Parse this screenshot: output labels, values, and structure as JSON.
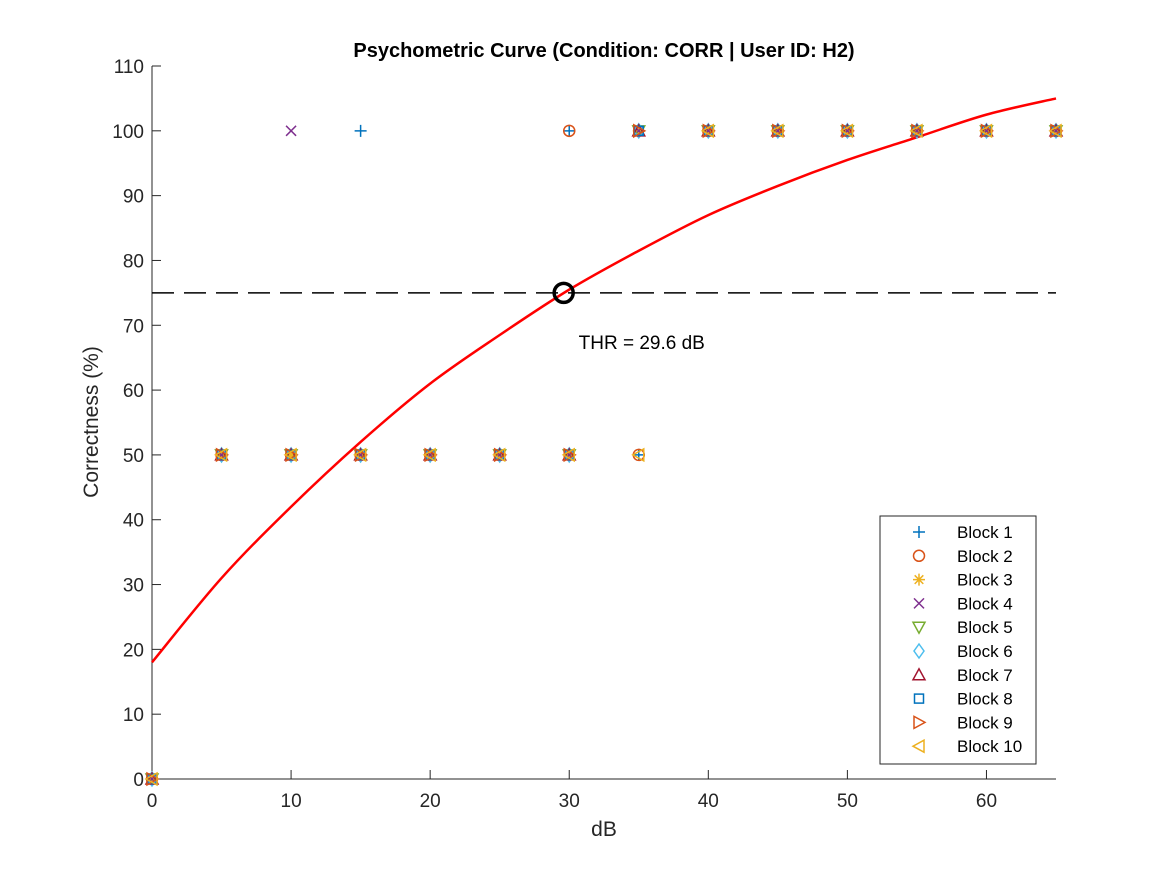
{
  "chart_data": {
    "type": "scatter",
    "title": "Psychometric Curve (Condition: CORR | User ID: H2)",
    "xlabel": "dB",
    "ylabel": "Correctness (%)",
    "xlim": [
      0,
      65
    ],
    "ylim": [
      0,
      110
    ],
    "xticks": [
      "0",
      "10",
      "20",
      "30",
      "40",
      "50",
      "60"
    ],
    "yticks": [
      "0",
      "10",
      "20",
      "30",
      "40",
      "50",
      "60",
      "70",
      "80",
      "90",
      "100",
      "110"
    ],
    "grid": false,
    "legend_location": "bottom-right",
    "series": [
      {
        "name": "Block 1",
        "marker": "plus",
        "color": "#0072BD",
        "points": [
          [
            0,
            0
          ],
          [
            5,
            50
          ],
          [
            10,
            50
          ],
          [
            15,
            100
          ],
          [
            20,
            50
          ],
          [
            25,
            50
          ],
          [
            30,
            100
          ],
          [
            35,
            50
          ],
          [
            40,
            100
          ],
          [
            45,
            100
          ],
          [
            50,
            100
          ],
          [
            55,
            100
          ],
          [
            60,
            100
          ],
          [
            65,
            100
          ]
        ]
      },
      {
        "name": "Block 2",
        "marker": "circle",
        "color": "#D95319",
        "points": [
          [
            0,
            0
          ],
          [
            5,
            50
          ],
          [
            10,
            50
          ],
          [
            15,
            50
          ],
          [
            20,
            50
          ],
          [
            25,
            50
          ],
          [
            30,
            100
          ],
          [
            35,
            50
          ],
          [
            40,
            100
          ],
          [
            45,
            100
          ],
          [
            50,
            100
          ],
          [
            55,
            100
          ],
          [
            60,
            100
          ],
          [
            65,
            100
          ]
        ]
      },
      {
        "name": "Block 3",
        "marker": "asterisk",
        "color": "#EDB120",
        "points": [
          [
            0,
            0
          ],
          [
            5,
            50
          ],
          [
            10,
            50
          ],
          [
            15,
            50
          ],
          [
            20,
            50
          ],
          [
            25,
            50
          ],
          [
            30,
            50
          ],
          [
            35,
            100
          ],
          [
            40,
            100
          ],
          [
            45,
            100
          ],
          [
            50,
            100
          ],
          [
            55,
            100
          ],
          [
            60,
            100
          ],
          [
            65,
            100
          ]
        ]
      },
      {
        "name": "Block 4",
        "marker": "x",
        "color": "#7E2F8E",
        "points": [
          [
            0,
            0
          ],
          [
            5,
            50
          ],
          [
            10,
            100
          ],
          [
            15,
            50
          ],
          [
            20,
            50
          ],
          [
            25,
            50
          ],
          [
            30,
            50
          ],
          [
            35,
            100
          ],
          [
            40,
            100
          ],
          [
            45,
            100
          ],
          [
            50,
            100
          ],
          [
            55,
            100
          ],
          [
            60,
            100
          ],
          [
            65,
            100
          ]
        ]
      },
      {
        "name": "Block 5",
        "marker": "triangle-down",
        "color": "#77AC30",
        "points": [
          [
            0,
            0
          ],
          [
            5,
            50
          ],
          [
            10,
            50
          ],
          [
            15,
            50
          ],
          [
            20,
            50
          ],
          [
            25,
            50
          ],
          [
            30,
            50
          ],
          [
            35,
            100
          ],
          [
            40,
            100
          ],
          [
            45,
            100
          ],
          [
            50,
            100
          ],
          [
            55,
            100
          ],
          [
            60,
            100
          ],
          [
            65,
            100
          ]
        ]
      },
      {
        "name": "Block 6",
        "marker": "diamond",
        "color": "#4DBEEE",
        "points": [
          [
            0,
            0
          ],
          [
            5,
            50
          ],
          [
            10,
            50
          ],
          [
            15,
            50
          ],
          [
            20,
            50
          ],
          [
            25,
            50
          ],
          [
            30,
            50
          ],
          [
            35,
            100
          ],
          [
            40,
            100
          ],
          [
            45,
            100
          ],
          [
            50,
            100
          ],
          [
            55,
            100
          ],
          [
            60,
            100
          ],
          [
            65,
            100
          ]
        ]
      },
      {
        "name": "Block 7",
        "marker": "triangle-up",
        "color": "#A2142F",
        "points": [
          [
            0,
            0
          ],
          [
            5,
            50
          ],
          [
            10,
            50
          ],
          [
            15,
            50
          ],
          [
            20,
            50
          ],
          [
            25,
            50
          ],
          [
            30,
            50
          ],
          [
            35,
            100
          ],
          [
            40,
            100
          ],
          [
            45,
            100
          ],
          [
            50,
            100
          ],
          [
            55,
            100
          ],
          [
            60,
            100
          ],
          [
            65,
            100
          ]
        ]
      },
      {
        "name": "Block 8",
        "marker": "square",
        "color": "#0072BD",
        "points": [
          [
            0,
            0
          ],
          [
            5,
            50
          ],
          [
            10,
            50
          ],
          [
            15,
            50
          ],
          [
            20,
            50
          ],
          [
            25,
            50
          ],
          [
            30,
            50
          ],
          [
            35,
            100
          ],
          [
            40,
            100
          ],
          [
            45,
            100
          ],
          [
            50,
            100
          ],
          [
            55,
            100
          ],
          [
            60,
            100
          ],
          [
            65,
            100
          ]
        ]
      },
      {
        "name": "Block 9",
        "marker": "triangle-right",
        "color": "#D95319",
        "points": [
          [
            0,
            0
          ],
          [
            5,
            50
          ],
          [
            10,
            50
          ],
          [
            15,
            50
          ],
          [
            20,
            50
          ],
          [
            25,
            50
          ],
          [
            30,
            50
          ],
          [
            35,
            100
          ],
          [
            40,
            100
          ],
          [
            45,
            100
          ],
          [
            50,
            100
          ],
          [
            55,
            100
          ],
          [
            60,
            100
          ],
          [
            65,
            100
          ]
        ]
      },
      {
        "name": "Block 10",
        "marker": "triangle-left",
        "color": "#EDB120",
        "points": [
          [
            0,
            0
          ],
          [
            5,
            50
          ],
          [
            10,
            50
          ],
          [
            15,
            50
          ],
          [
            20,
            50
          ],
          [
            25,
            50
          ],
          [
            30,
            50
          ],
          [
            35,
            50
          ],
          [
            40,
            100
          ],
          [
            45,
            100
          ],
          [
            50,
            100
          ],
          [
            55,
            100
          ],
          [
            60,
            100
          ],
          [
            65,
            100
          ]
        ]
      }
    ],
    "fit_curve": {
      "color": "#FF0000",
      "x": [
        0,
        5,
        10,
        15,
        20,
        25,
        30,
        35,
        40,
        45,
        50,
        55,
        60,
        65
      ],
      "y": [
        18,
        31,
        42,
        52,
        61,
        68.5,
        75.5,
        81.5,
        87,
        91.5,
        95.5,
        99,
        102.5,
        105
      ]
    },
    "threshold": {
      "level": 75,
      "x": 29.6,
      "line_color": "#000000",
      "marker_color": "#000000",
      "label": "THR = 29.6 dB"
    }
  }
}
